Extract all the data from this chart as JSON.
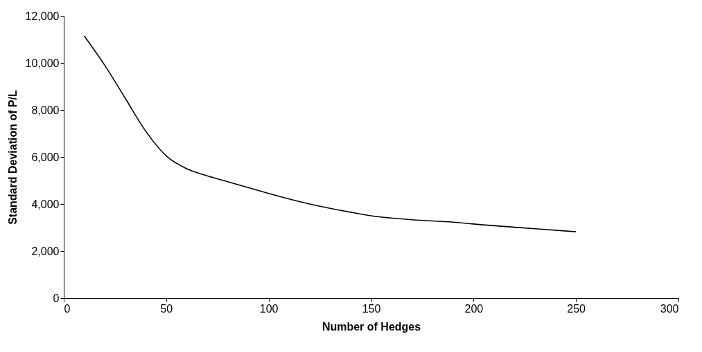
{
  "chart_data": {
    "type": "line",
    "xlabel": "Number of Hedges",
    "ylabel": "Standard Deviation of P/L",
    "x": [
      10,
      20,
      30,
      40,
      50,
      60,
      70,
      80,
      90,
      100,
      120,
      140,
      150,
      170,
      190,
      200,
      225,
      250
    ],
    "series": [
      {
        "color": "#000000",
        "values": [
          11150,
          9900,
          8500,
          7100,
          6050,
          5500,
          5200,
          4950,
          4700,
          4450,
          4000,
          3650,
          3500,
          3330,
          3230,
          3150,
          2980,
          2820
        ]
      }
    ],
    "xlim": [
      0,
      300
    ],
    "xticks": [
      0,
      50,
      100,
      150,
      200,
      250,
      300
    ],
    "ylim": [
      0,
      12000
    ],
    "yticks": [
      0,
      {
        "value": 2000,
        "label": "2,000"
      },
      {
        "value": 4000,
        "label": "4,000"
      },
      {
        "value": 6000,
        "label": "6,000"
      },
      {
        "value": 8000,
        "label": "8,000"
      },
      {
        "value": 10000,
        "label": "10,000"
      },
      {
        "value": 12000,
        "label": "12,000"
      }
    ],
    "grid": false,
    "marker": "none",
    "line_style": "solid"
  }
}
